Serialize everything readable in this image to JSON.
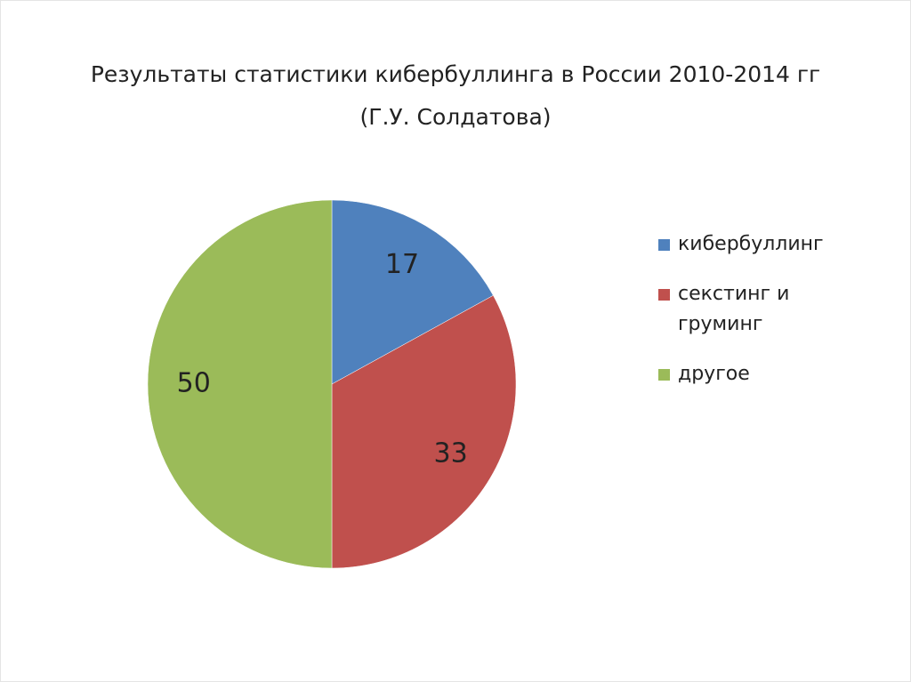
{
  "chart_data": {
    "type": "pie",
    "title": "Результаты статистики кибербуллинга в России  2010-2014 гг",
    "subtitle": "(Г.У. Солдатова)",
    "categories": [
      "кибербуллинг",
      "секстинг и груминг",
      "другое"
    ],
    "values": [
      17,
      33,
      50
    ],
    "colors": [
      "#4f81bd",
      "#c0504d",
      "#9bbb59"
    ],
    "legend": "right"
  }
}
